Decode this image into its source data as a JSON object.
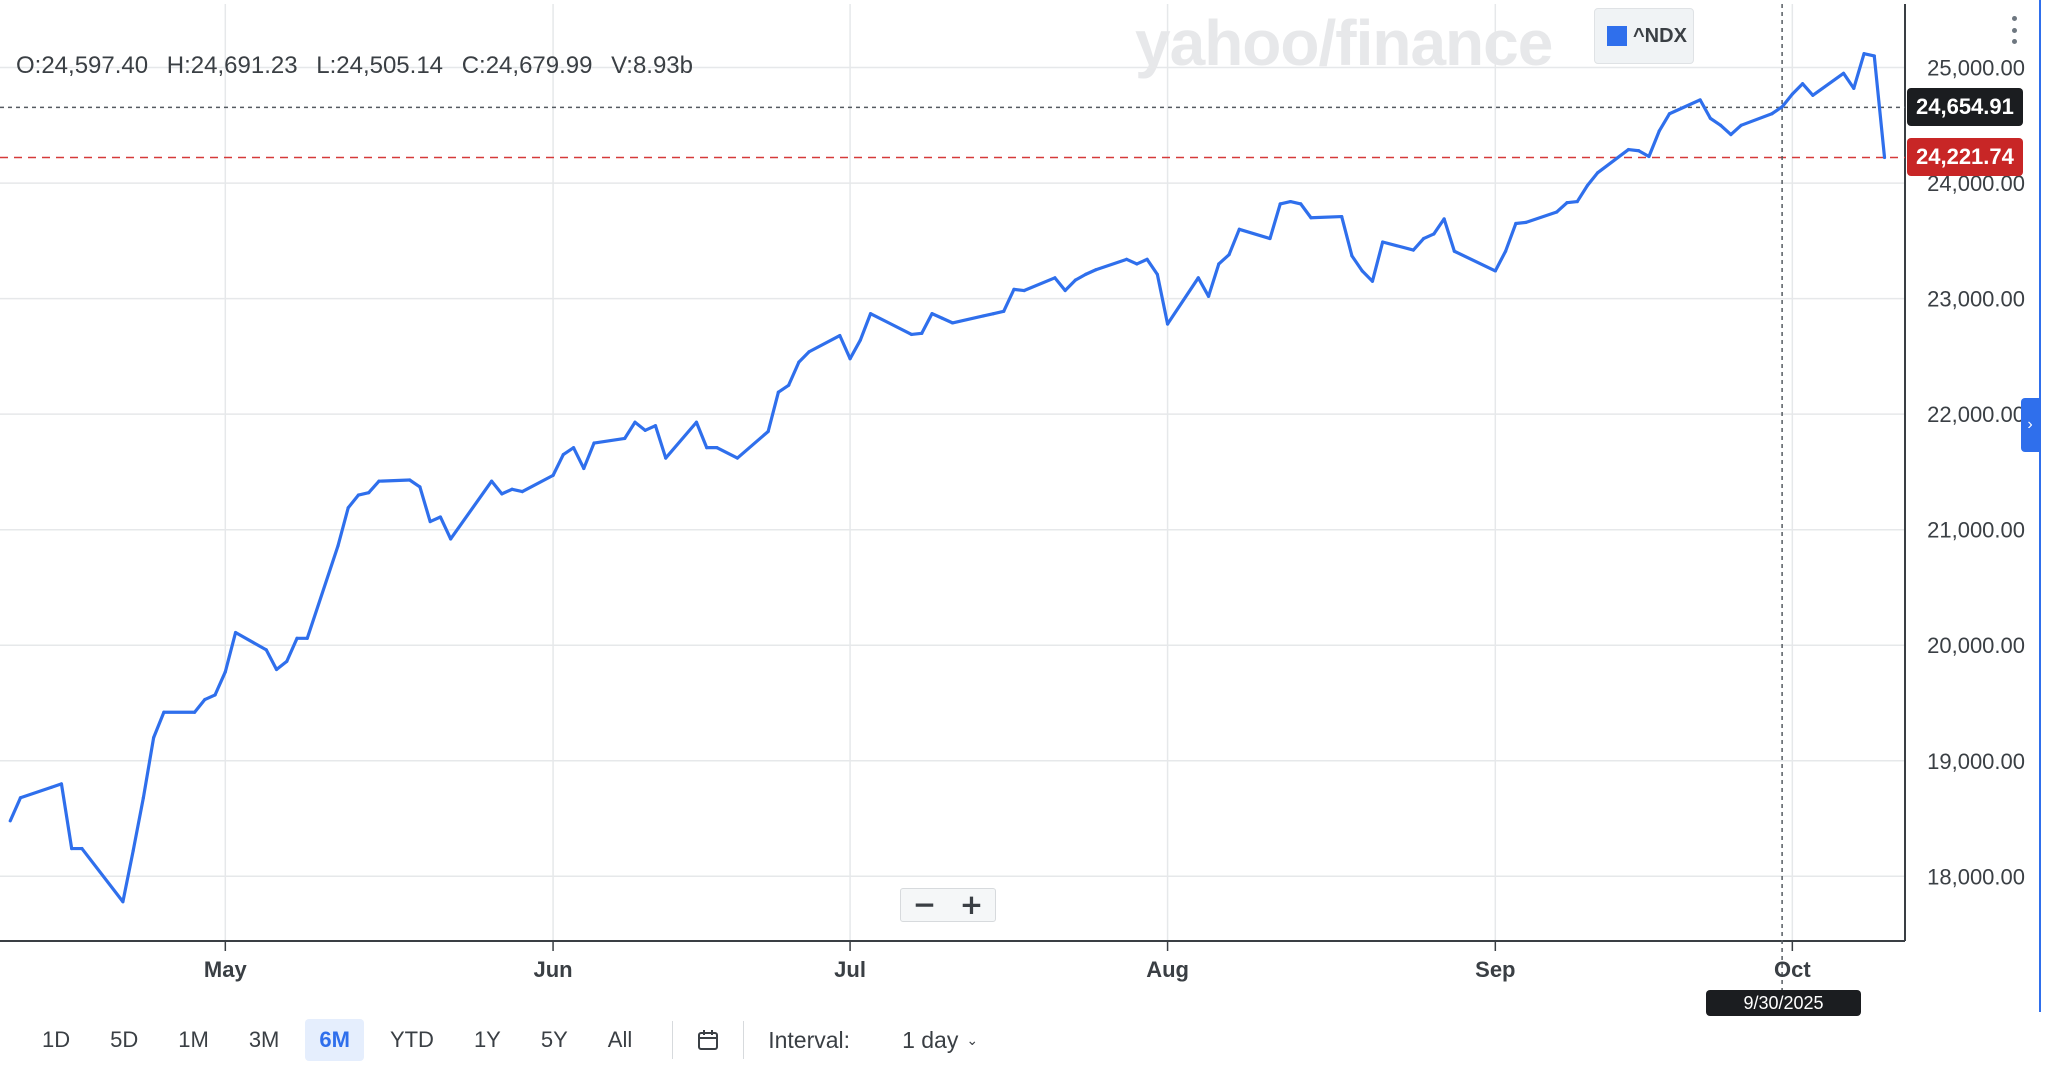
{
  "ohlc": {
    "open": "O:24,597.40",
    "high": "H:24,691.23",
    "low": "L:24,505.14",
    "close": "C:24,679.99",
    "volume": "V:8.93b"
  },
  "watermark": "yahoo/finance",
  "legend": {
    "symbol": "^NDX",
    "color": "#2f6fec"
  },
  "tags": {
    "last_price": "24,654.91",
    "prev_close": "24,221.74",
    "crosshair_date": "9/30/2025"
  },
  "colors": {
    "line": "#2f6fec",
    "last_price_tag": "#1b1d20",
    "prev_close_tag": "#c82626"
  },
  "zoom": {
    "minus": "−",
    "plus": "+"
  },
  "toolbar": {
    "ranges": [
      "1D",
      "5D",
      "1M",
      "3M",
      "6M",
      "YTD",
      "1Y",
      "5Y",
      "All"
    ],
    "active_range": "6M",
    "interval_label": "Interval:",
    "interval_value": "1 day"
  },
  "icons": {
    "calendar": "calendar-icon",
    "menu": "kebab-menu-icon",
    "expand": "chevron-right-icon",
    "dropdown": "chevron-down-icon"
  },
  "chart_data": {
    "type": "line",
    "series": [
      {
        "name": "^NDX",
        "x": [
          "2025-04-10",
          "2025-04-11",
          "2025-04-14",
          "2025-04-15",
          "2025-04-16",
          "2025-04-17",
          "2025-04-21",
          "2025-04-22",
          "2025-04-23",
          "2025-04-24",
          "2025-04-25",
          "2025-04-28",
          "2025-04-29",
          "2025-04-30",
          "2025-05-01",
          "2025-05-02",
          "2025-05-05",
          "2025-05-06",
          "2025-05-07",
          "2025-05-08",
          "2025-05-09",
          "2025-05-12",
          "2025-05-13",
          "2025-05-14",
          "2025-05-15",
          "2025-05-16",
          "2025-05-19",
          "2025-05-20",
          "2025-05-21",
          "2025-05-22",
          "2025-05-23",
          "2025-05-27",
          "2025-05-28",
          "2025-05-29",
          "2025-05-30",
          "2025-06-02",
          "2025-06-03",
          "2025-06-04",
          "2025-06-05",
          "2025-06-06",
          "2025-06-09",
          "2025-06-10",
          "2025-06-11",
          "2025-06-12",
          "2025-06-13",
          "2025-06-16",
          "2025-06-17",
          "2025-06-18",
          "2025-06-20",
          "2025-06-23",
          "2025-06-24",
          "2025-06-25",
          "2025-06-26",
          "2025-06-27",
          "2025-06-30",
          "2025-07-01",
          "2025-07-02",
          "2025-07-03",
          "2025-07-07",
          "2025-07-08",
          "2025-07-09",
          "2025-07-10",
          "2025-07-11",
          "2025-07-14",
          "2025-07-15",
          "2025-07-16",
          "2025-07-17",
          "2025-07-18",
          "2025-07-21",
          "2025-07-22",
          "2025-07-23",
          "2025-07-24",
          "2025-07-25",
          "2025-07-28",
          "2025-07-29",
          "2025-07-30",
          "2025-07-31",
          "2025-08-01",
          "2025-08-04",
          "2025-08-05",
          "2025-08-06",
          "2025-08-07",
          "2025-08-08",
          "2025-08-11",
          "2025-08-12",
          "2025-08-13",
          "2025-08-14",
          "2025-08-15",
          "2025-08-18",
          "2025-08-19",
          "2025-08-20",
          "2025-08-21",
          "2025-08-22",
          "2025-08-25",
          "2025-08-26",
          "2025-08-27",
          "2025-08-28",
          "2025-08-29",
          "2025-09-02",
          "2025-09-03",
          "2025-09-04",
          "2025-09-05",
          "2025-09-08",
          "2025-09-09",
          "2025-09-10",
          "2025-09-11",
          "2025-09-12",
          "2025-09-15",
          "2025-09-16",
          "2025-09-17",
          "2025-09-18",
          "2025-09-19",
          "2025-09-22",
          "2025-09-23",
          "2025-09-24",
          "2025-09-25",
          "2025-09-26",
          "2025-09-29",
          "2025-09-30",
          "2025-10-01",
          "2025-10-02",
          "2025-10-03",
          "2025-10-06",
          "2025-10-07",
          "2025-10-08",
          "2025-10-09",
          "2025-10-10"
        ],
        "y": [
          18480,
          18680,
          18770,
          18800,
          18240,
          18240,
          17780,
          18220,
          18680,
          19200,
          19420,
          19420,
          19530,
          19570,
          19770,
          20110,
          19960,
          19790,
          19860,
          20060,
          20060,
          20860,
          21190,
          21300,
          21320,
          21420,
          21430,
          21370,
          21070,
          21110,
          20920,
          21420,
          21310,
          21350,
          21330,
          21470,
          21650,
          21710,
          21530,
          21750,
          21790,
          21930,
          21860,
          21900,
          21620,
          21930,
          21710,
          21710,
          21620,
          21850,
          22190,
          22250,
          22450,
          22540,
          22680,
          22480,
          22640,
          22870,
          22690,
          22700,
          22870,
          22830,
          22790,
          22850,
          22870,
          22890,
          23080,
          23070,
          23180,
          23070,
          23160,
          23210,
          23250,
          23340,
          23300,
          23340,
          23210,
          22780,
          23180,
          23020,
          23300,
          23380,
          23600,
          23520,
          23820,
          23840,
          23820,
          23700,
          23710,
          23370,
          23240,
          23150,
          23490,
          23420,
          23520,
          23560,
          23690,
          23410,
          23240,
          23410,
          23650,
          23660,
          23750,
          23830,
          23840,
          23980,
          24090,
          24290,
          24280,
          24230,
          24450,
          24600,
          24720,
          24560,
          24500,
          24420,
          24500,
          24600,
          24660,
          24770,
          24860,
          24760,
          24950,
          24820,
          25120,
          25100,
          24221.74
        ]
      }
    ],
    "ylim": [
      17440,
      25550
    ],
    "yticks": [
      "18,000.00",
      "19,000.00",
      "20,000.00",
      "21,000.00",
      "22,000.00",
      "23,000.00",
      "24,000.00",
      "25,000.00"
    ],
    "ytick_values": [
      18000,
      19000,
      20000,
      21000,
      22000,
      23000,
      24000,
      25000
    ],
    "xticks": [
      "May",
      "Jun",
      "Jul",
      "Aug",
      "Sep",
      "Oct"
    ],
    "xtick_dates": [
      "2025-05-01",
      "2025-06-02",
      "2025-07-01",
      "2025-08-01",
      "2025-09-02",
      "2025-10-01"
    ],
    "xlim": [
      "2025-04-09",
      "2025-10-12"
    ],
    "crosshair": {
      "date": "2025-09-30",
      "value": 24654.91
    },
    "prev_close": 24221.74,
    "grid": true,
    "legend": "top-right"
  }
}
